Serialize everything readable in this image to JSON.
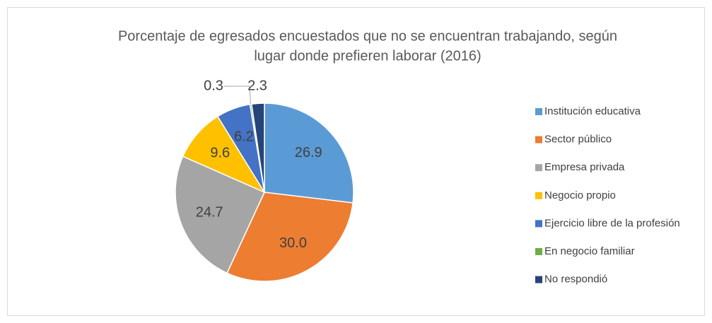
{
  "chart_data": {
    "type": "pie",
    "title": [
      "Porcentaje de egresados encuestados que no se encuentran trabajando, según",
      "lugar donde prefieren laborar (2016)"
    ],
    "categories": [
      "Institución educativa",
      "Sector público",
      "Empresa privada",
      "Negocio propio",
      "Ejercicio libre de la profesión",
      "En negocio familiar",
      "No respondió"
    ],
    "values": [
      26.9,
      30.0,
      24.7,
      9.6,
      6.2,
      0.3,
      2.3
    ],
    "value_labels": [
      "26.9",
      "30.0",
      "24.7",
      "9.6",
      "6.2",
      "0.3",
      "2.3"
    ],
    "colors": [
      "#5b9bd5",
      "#ed7d31",
      "#a5a5a5",
      "#ffc000",
      "#4472c4",
      "#70ad47",
      "#264478"
    ],
    "legend": "right"
  }
}
